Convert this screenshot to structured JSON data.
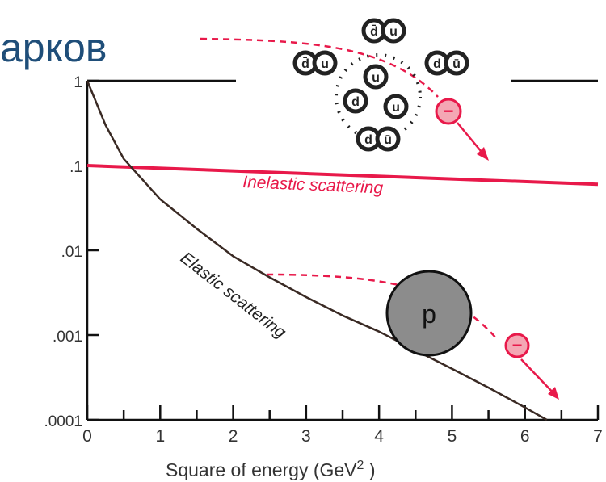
{
  "slide": {
    "heading": "арков"
  },
  "colors": {
    "axis": "#111111",
    "elastic": "#3a2a24",
    "inelastic": "#e8194a",
    "proton_fill": "#8c8c8c",
    "quark_fill": "#222222",
    "heading": "#1f4e79"
  },
  "icons": {
    "electron": "electron-icon",
    "proton": "proton-icon",
    "quark_cluster": "quark-cluster-icon"
  },
  "chart_data": {
    "type": "line",
    "xlabel_prefix": "Square of energy (GeV",
    "xlabel_exponent": "2",
    "xlabel_suffix": " )",
    "ylabel": "",
    "xlim": [
      0,
      7
    ],
    "ylim": [
      0.0001,
      1
    ],
    "y_scale": "log",
    "x_ticks": [
      "0",
      "1",
      "2",
      "3",
      "4",
      "5",
      "6",
      "7"
    ],
    "y_ticks": [
      {
        "label": "1",
        "value": 1
      },
      {
        "label": ".1",
        "value": 0.1
      },
      {
        "label": ".01",
        "value": 0.01
      },
      {
        "label": ".001",
        "value": 0.001
      },
      {
        "label": ".0001",
        "value": 0.0001
      }
    ],
    "grid": false,
    "series": [
      {
        "name": "Inelastic scattering",
        "x": [
          0,
          7
        ],
        "y": [
          0.1,
          0.06
        ]
      },
      {
        "name": "Elastic scattering",
        "x": [
          0,
          0.25,
          0.5,
          1,
          1.5,
          2,
          2.5,
          3,
          3.5,
          4,
          4.5,
          5,
          5.5,
          6,
          6.3
        ],
        "y": [
          1,
          0.3,
          0.12,
          0.04,
          0.018,
          0.0085,
          0.0048,
          0.0028,
          0.0017,
          0.0011,
          0.00066,
          0.0004,
          0.00024,
          0.00014,
          0.0001
        ]
      }
    ],
    "diagram": {
      "proton_label": "p",
      "electron_label": "−",
      "quark_pairs": [
        {
          "a": "d̄",
          "b": "u"
        },
        {
          "a": "d̄",
          "b": "u"
        },
        {
          "a": "d",
          "b": "ū"
        },
        {
          "a": "u",
          "b": ""
        },
        {
          "a": "d",
          "b": ""
        },
        {
          "a": "u",
          "b": ""
        },
        {
          "a": "d",
          "b": "ū"
        }
      ]
    }
  }
}
